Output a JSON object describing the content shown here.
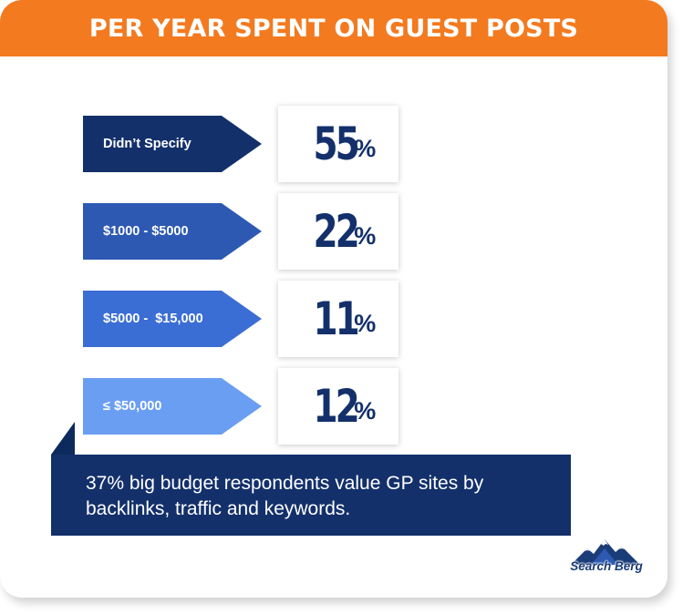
{
  "header": {
    "title": "PER YEAR SPENT ON GUEST POSTS"
  },
  "chart_data": {
    "type": "bar",
    "title": "PER YEAR SPENT ON GUEST POSTS",
    "categories": [
      "Didn’t Specify",
      "$1000 - $5000",
      "$5000 -  $15,000",
      "≤ $50,000"
    ],
    "values": [
      55,
      22,
      11,
      12
    ],
    "value_labels": [
      "55",
      "22",
      "11",
      "12"
    ],
    "unit": "%",
    "colors": [
      "#13306b",
      "#2d59b3",
      "#3b6ed4",
      "#6a9ef2"
    ]
  },
  "note": {
    "text": "37% big budget respondents value GP sites by backlinks, traffic and keywords."
  },
  "brand": {
    "name": "Search Berg",
    "colors": {
      "accent": "#f37a1f",
      "navy": "#13306b"
    }
  }
}
